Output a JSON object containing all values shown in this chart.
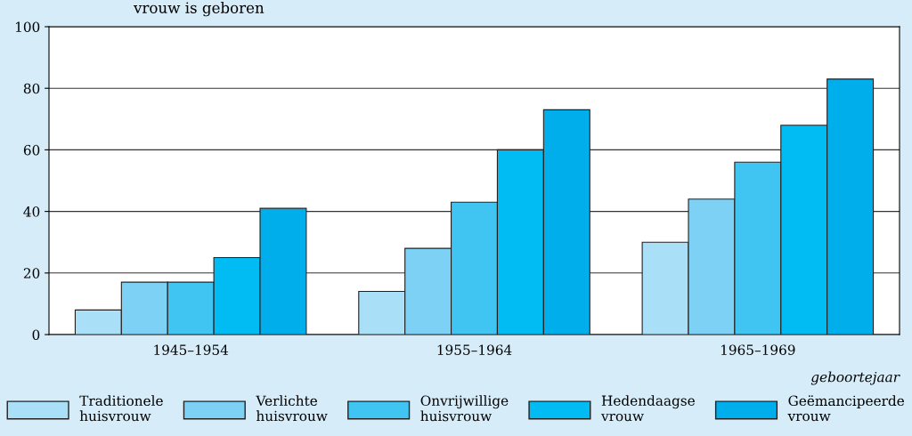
{
  "chart_data": {
    "type": "bar",
    "title": "vrouw is geboren",
    "xlabel": "geboortejaar",
    "categories": [
      "1945–1954",
      "1955–1964",
      "1965–1969"
    ],
    "series": [
      {
        "name": "Traditionele\nhuisvrouw",
        "color": "#aadff8",
        "values": [
          8,
          14,
          30
        ]
      },
      {
        "name": "Verlichte\nhuisvrouw",
        "color": "#7dd1f4",
        "values": [
          17,
          28,
          44
        ]
      },
      {
        "name": "Onvrijwillige\nhuisvrouw",
        "color": "#40c5f2",
        "values": [
          17,
          43,
          56
        ]
      },
      {
        "name": "Hedendaagse\nvrouw",
        "color": "#00bcf2",
        "values": [
          25,
          60,
          68
        ]
      },
      {
        "name": "Geëmancipeerde\nvrouw",
        "color": "#00aeeb",
        "values": [
          41,
          73,
          83
        ]
      }
    ],
    "ylim": [
      0,
      100
    ],
    "yticks": [
      0,
      20,
      40,
      60,
      80,
      100
    ],
    "grid": "y",
    "legend": "bottom"
  }
}
